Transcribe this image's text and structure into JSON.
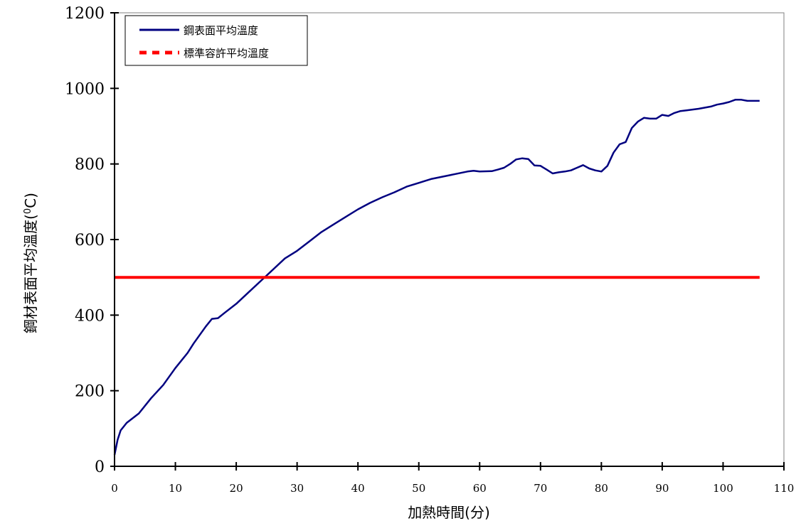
{
  "chart_data": {
    "type": "line",
    "xlabel": "加熱時間(分)",
    "ylabel": "鋼材表面平均溫度(",
    "ylabel_unit": "0",
    "ylabel_suffix": "C)",
    "xlim": [
      0,
      110
    ],
    "ylim": [
      0,
      1200
    ],
    "x_ticks": [
      0,
      10,
      20,
      30,
      40,
      50,
      60,
      70,
      80,
      90,
      100,
      110
    ],
    "y_ticks": [
      0,
      200,
      400,
      600,
      800,
      1000,
      1200
    ],
    "grid": false,
    "legend_position": "top-left",
    "series": [
      {
        "name": "鋼表面平均溫度",
        "color": "#000080",
        "style": "solid",
        "x": [
          0,
          0.5,
          1,
          2,
          4,
          6,
          8,
          10,
          12,
          13,
          15,
          16,
          17,
          18,
          20,
          22,
          25,
          28,
          30,
          32,
          34,
          36,
          38,
          40,
          42,
          44,
          46,
          48,
          50,
          52,
          55,
          58,
          59,
          60,
          62,
          63,
          64,
          65,
          66,
          67,
          68,
          69,
          70,
          71,
          72,
          73,
          74,
          75,
          76,
          77,
          78,
          79,
          80,
          81,
          82,
          83,
          84,
          85,
          86,
          87,
          88,
          89,
          90,
          91,
          92,
          93,
          94,
          96,
          98,
          99,
          100,
          101,
          102,
          103,
          104,
          105,
          106
        ],
        "y": [
          30,
          70,
          95,
          115,
          140,
          180,
          215,
          260,
          300,
          325,
          370,
          390,
          392,
          405,
          430,
          460,
          505,
          550,
          570,
          595,
          620,
          640,
          660,
          680,
          697,
          712,
          725,
          740,
          750,
          760,
          770,
          780,
          782,
          780,
          781,
          785,
          790,
          800,
          812,
          815,
          813,
          796,
          795,
          785,
          775,
          778,
          780,
          783,
          790,
          797,
          788,
          783,
          780,
          795,
          830,
          852,
          858,
          895,
          912,
          922,
          920,
          920,
          930,
          927,
          935,
          940,
          942,
          946,
          952,
          957,
          960,
          964,
          970,
          970,
          967,
          967,
          967
        ]
      },
      {
        "name": "標準容許平均溫度",
        "color": "#ff0000",
        "style": "dashed",
        "x": [
          0,
          106
        ],
        "y": [
          500,
          500
        ]
      }
    ]
  }
}
